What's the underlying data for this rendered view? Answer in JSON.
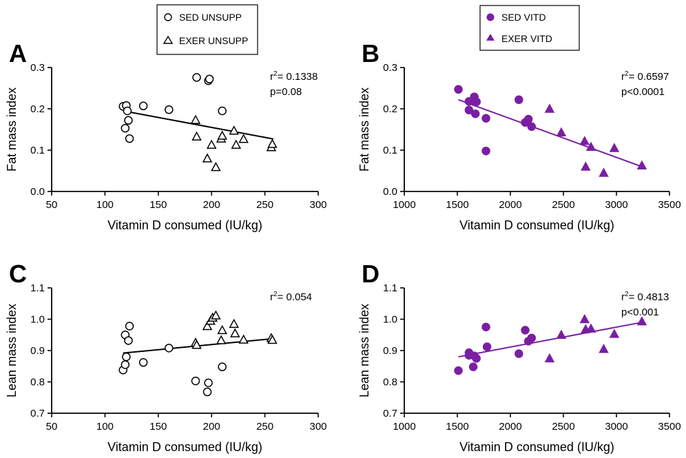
{
  "colors": {
    "unsupp": "#000000",
    "vitd": "#7a1fa2"
  },
  "legends": [
    {
      "entries": [
        {
          "label": "SED UNSUPP",
          "marker": "circle",
          "filled": false,
          "color": "#000000"
        },
        {
          "label": "EXER UNSUPP",
          "marker": "triangle",
          "filled": false,
          "color": "#000000"
        }
      ]
    },
    {
      "entries": [
        {
          "label": "SED VITD",
          "marker": "circle",
          "filled": true,
          "color": "#7a1fa2"
        },
        {
          "label": "EXER VITD",
          "marker": "triangle",
          "filled": true,
          "color": "#7a1fa2"
        }
      ]
    }
  ],
  "chart_data": [
    {
      "panel": "A",
      "type": "scatter",
      "xlabel": "Vitamin D consumed (IU/kg)",
      "ylabel": "Fat mass index",
      "xlim": [
        50,
        300
      ],
      "xticks": [
        50,
        100,
        150,
        200,
        250,
        300
      ],
      "ylim": [
        0.0,
        0.3
      ],
      "yticks": [
        0.0,
        0.1,
        0.2,
        0.3
      ],
      "ydecimals": 1,
      "color": "#000000",
      "filled": false,
      "annotation": {
        "r2": "= 0.1338",
        "p": "p=0.08"
      },
      "fit": {
        "x": [
          117,
          258
        ],
        "y": [
          0.195,
          0.127
        ]
      },
      "series": [
        {
          "name": "SED UNSUPP",
          "marker": "circle",
          "points": [
            [
              117,
              0.206
            ],
            [
              120,
              0.208
            ],
            [
              121,
              0.195
            ],
            [
              119,
              0.153
            ],
            [
              122,
              0.172
            ],
            [
              123,
              0.128
            ],
            [
              136,
              0.207
            ],
            [
              160,
              0.198
            ],
            [
              186,
              0.276
            ],
            [
              197,
              0.268
            ],
            [
              198,
              0.272
            ],
            [
              210,
              0.195
            ]
          ]
        },
        {
          "name": "EXER UNSUPP",
          "marker": "triangle",
          "points": [
            [
              185,
              0.173
            ],
            [
              186,
              0.133
            ],
            [
              196,
              0.08
            ],
            [
              200,
              0.113
            ],
            [
              204,
              0.059
            ],
            [
              209,
              0.128
            ],
            [
              210,
              0.135
            ],
            [
              221,
              0.147
            ],
            [
              223,
              0.113
            ],
            [
              230,
              0.127
            ],
            [
              256,
              0.107
            ],
            [
              257,
              0.115
            ]
          ]
        }
      ]
    },
    {
      "panel": "B",
      "type": "scatter",
      "xlabel": "Vitamin D consumed (IU/kg)",
      "ylabel": "Fat mass index",
      "xlim": [
        1000,
        3500
      ],
      "xticks": [
        1000,
        1500,
        2000,
        2500,
        3000,
        3500
      ],
      "ylim": [
        0.0,
        0.3
      ],
      "yticks": [
        0.0,
        0.1,
        0.2,
        0.3
      ],
      "ydecimals": 1,
      "color": "#7a1fa2",
      "filled": true,
      "annotation": {
        "r2": "= 0.6597",
        "p": "p<0.0001"
      },
      "fit": {
        "x": [
          1510,
          3240
        ],
        "y": [
          0.222,
          0.06
        ]
      },
      "series": [
        {
          "name": "SED VITD",
          "marker": "circle",
          "points": [
            [
              1510,
              0.247
            ],
            [
              1610,
              0.218
            ],
            [
              1610,
              0.197
            ],
            [
              1660,
              0.229
            ],
            [
              1660,
              0.22
            ],
            [
              1680,
              0.217
            ],
            [
              1670,
              0.188
            ],
            [
              1770,
              0.177
            ],
            [
              1770,
              0.098
            ],
            [
              2080,
              0.222
            ],
            [
              2140,
              0.167
            ],
            [
              2170,
              0.175
            ],
            [
              2200,
              0.157
            ]
          ]
        },
        {
          "name": "EXER VITD",
          "marker": "triangle",
          "points": [
            [
              2370,
              0.2
            ],
            [
              2480,
              0.143
            ],
            [
              2700,
              0.122
            ],
            [
              2710,
              0.06
            ],
            [
              2760,
              0.108
            ],
            [
              2880,
              0.045
            ],
            [
              2980,
              0.105
            ],
            [
              3240,
              0.063
            ]
          ]
        }
      ]
    },
    {
      "panel": "C",
      "type": "scatter",
      "xlabel": "Vitamin D consumed (IU/kg)",
      "ylabel": "Lean mass index",
      "xlim": [
        50,
        300
      ],
      "xticks": [
        50,
        100,
        150,
        200,
        250,
        300
      ],
      "ylim": [
        0.7,
        1.1
      ],
      "yticks": [
        0.7,
        0.8,
        0.9,
        1.0,
        1.1
      ],
      "ydecimals": 1,
      "color": "#000000",
      "filled": false,
      "annotation": {
        "r2": "= 0.054",
        "p": ""
      },
      "fit": {
        "x": [
          117,
          258
        ],
        "y": [
          0.892,
          0.938
        ]
      },
      "series": [
        {
          "name": "SED UNSUPP",
          "marker": "circle",
          "points": [
            [
              117,
              0.838
            ],
            [
              119,
              0.855
            ],
            [
              119,
              0.95
            ],
            [
              120,
              0.88
            ],
            [
              122,
              0.932
            ],
            [
              123,
              0.978
            ],
            [
              136,
              0.862
            ],
            [
              160,
              0.908
            ],
            [
              185,
              0.803
            ],
            [
              196,
              0.768
            ],
            [
              197,
              0.797
            ],
            [
              210,
              0.848
            ]
          ]
        },
        {
          "name": "EXER UNSUPP",
          "marker": "triangle",
          "points": [
            [
              185,
              0.925
            ],
            [
              186,
              0.918
            ],
            [
              196,
              0.978
            ],
            [
              199,
              0.995
            ],
            [
              201,
              1.005
            ],
            [
              204,
              1.012
            ],
            [
              209,
              0.933
            ],
            [
              210,
              0.965
            ],
            [
              221,
              0.985
            ],
            [
              222,
              0.955
            ],
            [
              230,
              0.935
            ],
            [
              256,
              0.94
            ],
            [
              257,
              0.934
            ]
          ]
        }
      ]
    },
    {
      "panel": "D",
      "type": "scatter",
      "xlabel": "Vitamin D consumed (IU/kg)",
      "ylabel": "Lean mass index",
      "xlim": [
        1000,
        3500
      ],
      "xticks": [
        1000,
        1500,
        2000,
        2500,
        3000,
        3500
      ],
      "ylim": [
        0.7,
        1.1
      ],
      "yticks": [
        0.7,
        0.8,
        0.9,
        1.0,
        1.1
      ],
      "ydecimals": 1,
      "color": "#7a1fa2",
      "filled": true,
      "annotation": {
        "r2": "= 0.4813",
        "p": "p<0.001"
      },
      "fit": {
        "x": [
          1510,
          3240
        ],
        "y": [
          0.88,
          0.99
        ]
      },
      "series": [
        {
          "name": "SED VITD",
          "marker": "circle",
          "points": [
            [
              1510,
              0.836
            ],
            [
              1610,
              0.893
            ],
            [
              1610,
              0.885
            ],
            [
              1650,
              0.848
            ],
            [
              1660,
              0.883
            ],
            [
              1680,
              0.875
            ],
            [
              1770,
              0.975
            ],
            [
              1780,
              0.912
            ],
            [
              2080,
              0.89
            ],
            [
              2140,
              0.965
            ],
            [
              2170,
              0.93
            ],
            [
              2200,
              0.94
            ]
          ]
        },
        {
          "name": "EXER VITD",
          "marker": "triangle",
          "points": [
            [
              2370,
              0.875
            ],
            [
              2480,
              0.95
            ],
            [
              2700,
              1.0
            ],
            [
              2710,
              0.968
            ],
            [
              2760,
              0.97
            ],
            [
              2880,
              0.905
            ],
            [
              2980,
              0.953
            ],
            [
              3240,
              0.993
            ]
          ]
        }
      ]
    }
  ]
}
